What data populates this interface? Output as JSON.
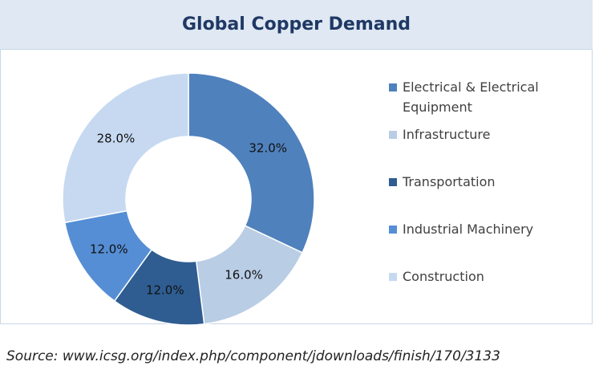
{
  "chart_data": {
    "type": "donut",
    "title": "Global Copper Demand",
    "categories": [
      "Electrical & Electrical Equipment",
      "Infrastructure",
      "Transportation",
      "Industrial Machinery",
      "Construction"
    ],
    "values": [
      32,
      16,
      12,
      12,
      28
    ],
    "value_labels": [
      "32.0%",
      "16.0%",
      "12.0%",
      "12.0%",
      "28.0%"
    ],
    "colors": [
      "#4f81bd",
      "#b9cde5",
      "#2f5d91",
      "#558ed5",
      "#c6d9f1"
    ],
    "legend": "right",
    "source": "Source:  www.icsg.org/index.php/component/jdownloads/finish/170/3133"
  }
}
